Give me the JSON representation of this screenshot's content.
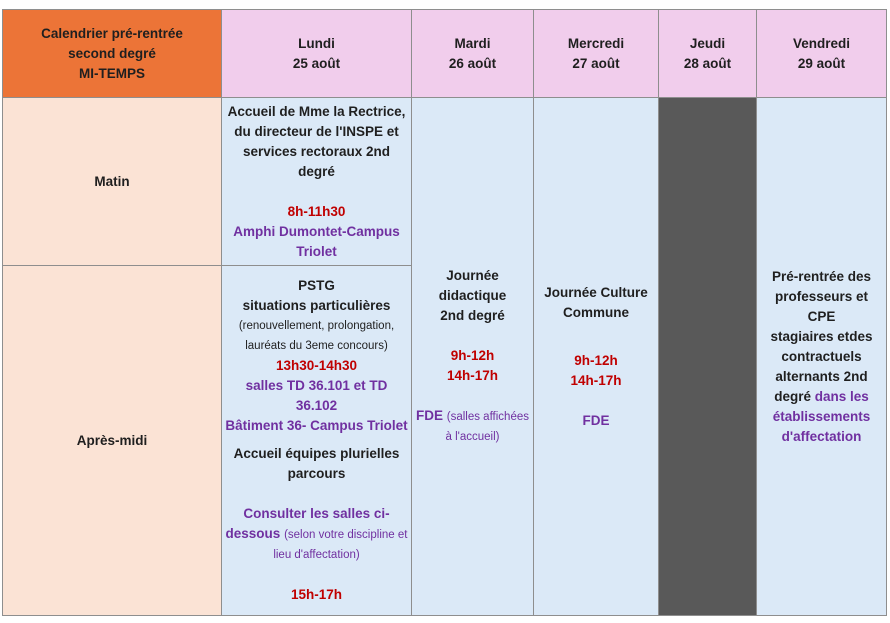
{
  "title": [
    "Calendrier pré-rentrée",
    "second degré",
    "MI-TEMPS"
  ],
  "days": [
    {
      "name": "Lundi",
      "date": "25 août"
    },
    {
      "name": "Mardi",
      "date": "26 août"
    },
    {
      "name": "Mercredi",
      "date": "27 août"
    },
    {
      "name": "Jeudi",
      "date": "28 août"
    },
    {
      "name": "Vendredi",
      "date": "29 août"
    }
  ],
  "rows": {
    "matin": "Matin",
    "apres_midi": "Après-midi"
  },
  "lundi_matin": {
    "heading": [
      "Accueil de Mme la Rectrice,",
      "du directeur de l'INSPE et",
      "services rectoraux 2nd degré"
    ],
    "time": "8h-11h30",
    "place": [
      "Amphi Dumontet-Campus",
      "Triolet"
    ]
  },
  "lundi_apres_midi": {
    "heading": [
      "PSTG",
      "situations particulières"
    ],
    "note": [
      "(renouvellement, prolongation,",
      "lauréats du 3eme concours)"
    ],
    "time": "13h30-14h30",
    "place": [
      "salles TD 36.101 et TD 36.102",
      "Bâtiment 36- Campus Triolet"
    ],
    "heading2": [
      "Accueil équipes plurielles",
      "parcours"
    ],
    "consult": [
      "Consulter les salles ci-",
      "dessous"
    ],
    "consult_note": [
      "(selon votre discipline et",
      "lieu d'affectation)"
    ],
    "time2": "15h-17h"
  },
  "mardi": {
    "heading": [
      "Journée",
      "didactique",
      "2nd degré"
    ],
    "times": [
      "9h-12h",
      "14h-17h"
    ],
    "place": "FDE",
    "note": [
      "(salles affichées",
      "à l'accueil)"
    ]
  },
  "mercredi": {
    "heading": [
      "Journée Culture",
      "Commune"
    ],
    "times": [
      "9h-12h",
      "14h-17h"
    ],
    "place": "FDE"
  },
  "vendredi": {
    "heading": [
      "Pré-rentrée des",
      "professeurs et CPE",
      "stagiaires etdes",
      "contractuels",
      "alternants 2nd"
    ],
    "heading_last": "degré",
    "place": [
      "dans les",
      "établissements",
      "d'affectation"
    ]
  },
  "colors": {
    "title_bg": "#ec7437",
    "day_bg": "#f1cdec",
    "side_bg": "#fbe3d5",
    "cell_bg": "#dbe9f7",
    "closed_bg": "#595959",
    "time_color": "#c00000",
    "place_color": "#7030a0"
  }
}
